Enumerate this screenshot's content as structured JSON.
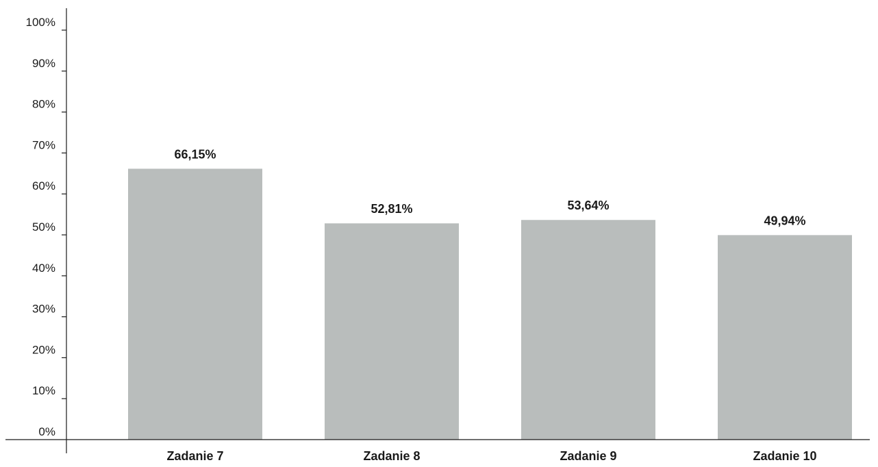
{
  "chart_data": {
    "type": "bar",
    "categories": [
      "Zadanie 7",
      "Zadanie 8",
      "Zadanie 9",
      "Zadanie 10"
    ],
    "values": [
      66.15,
      52.81,
      53.64,
      49.94
    ],
    "value_labels": [
      "66,15%",
      "52,81%",
      "53,64%",
      "49,94%"
    ],
    "ylim": [
      0,
      100
    ],
    "yticks": [
      0,
      10,
      20,
      30,
      40,
      50,
      60,
      70,
      80,
      90,
      100
    ],
    "ytick_labels": [
      "0%",
      "10%",
      "20%",
      "30%",
      "40%",
      "50%",
      "60%",
      "70%",
      "80%",
      "90%",
      "100%"
    ],
    "title": "",
    "xlabel": "",
    "ylabel": "",
    "grid": false,
    "legend": false,
    "colors": {
      "bar": "#b9bdbc",
      "axis": "#1a1a1a",
      "text": "#1a1a1a",
      "background": "#ffffff"
    }
  }
}
